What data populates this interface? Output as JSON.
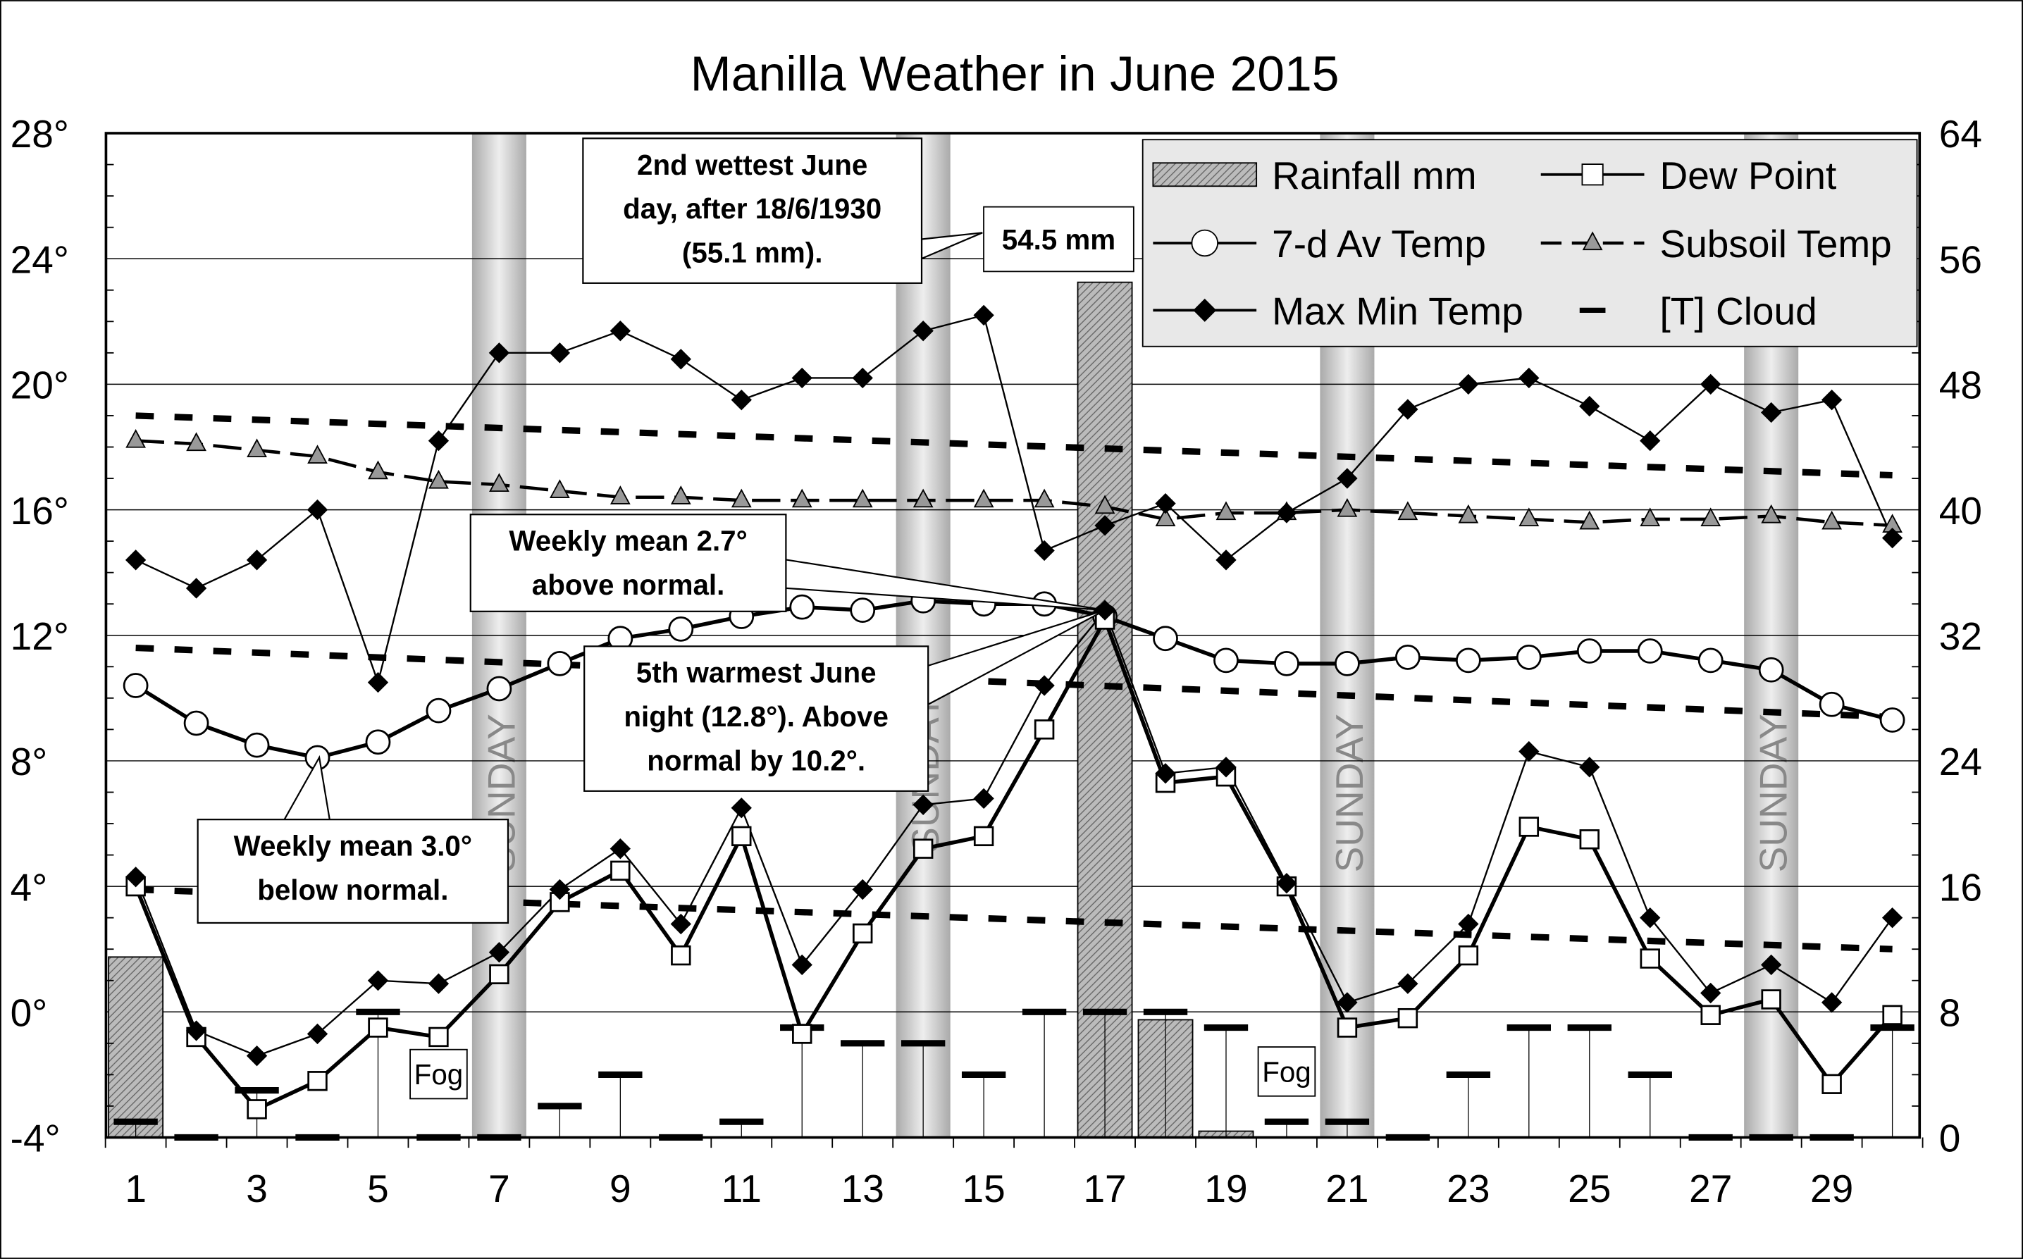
{
  "chart_data": {
    "type": "line",
    "title": "Manilla Weather in June 2015",
    "x": [
      1,
      2,
      3,
      4,
      5,
      6,
      7,
      8,
      9,
      10,
      11,
      12,
      13,
      14,
      15,
      16,
      17,
      18,
      19,
      20,
      21,
      22,
      23,
      24,
      25,
      26,
      27,
      28,
      29,
      30
    ],
    "x_tick_labels": [
      "1",
      "3",
      "5",
      "7",
      "9",
      "11",
      "13",
      "15",
      "17",
      "19",
      "21",
      "23",
      "25",
      "27",
      "29"
    ],
    "y_left": {
      "range": [
        -4,
        28
      ],
      "tick_labels": [
        "28°",
        "24°",
        "20°",
        "16°",
        "12°",
        "8°",
        "4°",
        "0°",
        "-4°"
      ]
    },
    "y_right": {
      "range": [
        0,
        64
      ],
      "tick_labels": [
        "64",
        "56",
        "48",
        "40",
        "32",
        "24",
        "16",
        "8",
        "0"
      ]
    },
    "grid": true,
    "legend_position": "top-right",
    "series": [
      {
        "name": "Max Min Temp",
        "legend": "Max Min Temp",
        "kind": "max",
        "values": [
          14.4,
          13.5,
          14.4,
          16.0,
          10.5,
          18.2,
          21.0,
          21.0,
          21.7,
          20.8,
          19.5,
          20.2,
          20.2,
          21.7,
          22.2,
          14.7,
          15.5,
          16.2,
          14.4,
          15.9,
          17.0,
          19.2,
          20.0,
          20.2,
          19.3,
          18.2,
          20.0,
          19.1,
          19.5,
          15.1
        ]
      },
      {
        "name": "Min Temp",
        "kind": "min",
        "values": [
          4.3,
          -0.6,
          -1.4,
          -0.7,
          1.0,
          0.9,
          1.9,
          3.9,
          5.2,
          2.8,
          6.5,
          1.5,
          3.9,
          6.6,
          6.8,
          10.4,
          12.8,
          7.6,
          7.8,
          4.1,
          0.3,
          0.9,
          2.8,
          8.3,
          7.8,
          3.0,
          0.6,
          1.5,
          0.3,
          3.0
        ]
      },
      {
        "name": "Dew Point",
        "legend": "Dew Point",
        "values": [
          4.0,
          -0.8,
          -3.1,
          -2.2,
          -0.5,
          -0.8,
          1.2,
          3.5,
          4.5,
          1.8,
          5.6,
          -0.7,
          2.5,
          5.2,
          5.6,
          9.0,
          12.5,
          7.3,
          7.5,
          4.0,
          -0.5,
          -0.2,
          1.8,
          5.9,
          5.5,
          1.7,
          -0.1,
          0.4,
          -2.3,
          -0.1
        ]
      },
      {
        "name": "7-d Av Temp",
        "legend": "7-d Av Temp",
        "values": [
          10.4,
          9.2,
          8.5,
          8.1,
          8.6,
          9.6,
          10.3,
          11.1,
          11.9,
          12.2,
          12.6,
          12.9,
          12.8,
          13.1,
          13.0,
          13.0,
          12.6,
          11.9,
          11.2,
          11.1,
          11.1,
          11.3,
          11.2,
          11.3,
          11.5,
          11.5,
          11.2,
          10.9,
          9.8,
          9.3
        ]
      },
      {
        "name": "Subsoil Temp",
        "legend": "Subsoil Temp",
        "values": [
          18.2,
          18.1,
          17.9,
          17.7,
          17.2,
          16.9,
          16.8,
          16.6,
          16.4,
          16.4,
          16.3,
          16.3,
          16.3,
          16.3,
          16.3,
          16.3,
          16.1,
          15.7,
          15.9,
          15.9,
          16.0,
          15.9,
          15.8,
          15.7,
          15.6,
          15.7,
          15.7,
          15.8,
          15.6,
          15.5
        ]
      },
      {
        "name": "Normal Max",
        "kind": "normal",
        "start": 19.0,
        "end": 17.1
      },
      {
        "name": "Normal 7-d Av",
        "kind": "normal",
        "start": 11.6,
        "end": 9.4
      },
      {
        "name": "Normal Min",
        "kind": "normal",
        "start": 3.9,
        "end": 2.0
      },
      {
        "name": "Rainfall mm",
        "legend": "Rainfall mm",
        "axis": "right",
        "type": "bar",
        "values": {
          "1": 11.5,
          "17": 54.5,
          "18": 7.5,
          "19": 0.4
        }
      },
      {
        "name": "Cloud",
        "legend": "[T]   Cloud",
        "axis": "right",
        "unit": "oktas",
        "values": [
          1,
          0,
          3,
          0,
          8,
          0,
          0,
          2,
          4,
          0,
          1,
          7,
          6,
          6,
          4,
          8,
          8,
          8,
          7,
          1,
          1,
          0,
          4,
          7,
          7,
          4,
          0,
          0,
          0,
          7
        ]
      }
    ],
    "sundays": [
      7,
      14,
      21,
      28
    ],
    "sunday_label": "SUNDAY",
    "fog_days": [
      6,
      20
    ],
    "fog_label": "Fog",
    "annotations": {
      "wettest": [
        "2nd wettest June",
        "day, after 18/6/1930",
        "(55.1 mm)."
      ],
      "rain_value": "54.5 mm",
      "weekly_above": [
        "Weekly mean 2.7°",
        "above normal."
      ],
      "warmest_night": [
        "5th warmest June",
        "night (12.8°). Above",
        "normal by 10.2°."
      ],
      "weekly_below": [
        "Weekly mean 3.0°",
        "below normal."
      ]
    }
  }
}
